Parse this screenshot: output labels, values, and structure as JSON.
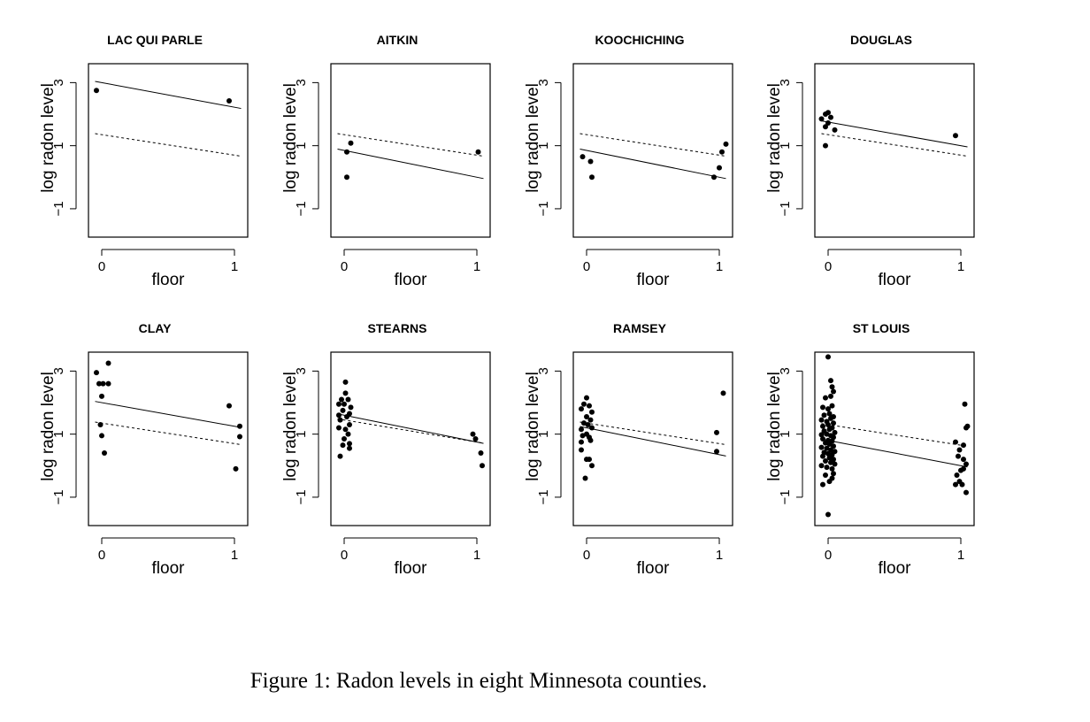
{
  "caption": "Figure 1: Radon levels in eight Minnesota counties.",
  "chart_data": [
    {
      "type": "scatter",
      "title": "LAC QUI PARLE",
      "xlabel": "floor",
      "ylabel": "log radon level",
      "xlim": [
        -0.1,
        1.1
      ],
      "ylim": [
        -1.9,
        3.6
      ],
      "xticks": [
        0,
        1
      ],
      "yticks": [
        -1,
        1,
        3
      ],
      "points": [
        [
          -0.04,
          2.75
        ],
        [
          0.96,
          2.42
        ]
      ],
      "solid_line": {
        "intercept": 3.0,
        "slope": -0.78
      },
      "dashed_line": {
        "intercept": 1.35,
        "slope": -0.65
      }
    },
    {
      "type": "scatter",
      "title": "AITKIN",
      "xlabel": "floor",
      "ylabel": "log radon level",
      "xlim": [
        -0.1,
        1.1
      ],
      "ylim": [
        -1.9,
        3.6
      ],
      "xticks": [
        0,
        1
      ],
      "yticks": [
        -1,
        1,
        3
      ],
      "points": [
        [
          0.02,
          0.8
        ],
        [
          0.05,
          1.08
        ],
        [
          0.02,
          0.0
        ],
        [
          1.01,
          0.8
        ]
      ],
      "solid_line": {
        "intercept": 0.85,
        "slope": -0.85
      },
      "dashed_line": {
        "intercept": 1.35,
        "slope": -0.65
      }
    },
    {
      "type": "scatter",
      "title": "KOOCHICHING",
      "xlabel": "floor",
      "ylabel": "log radon level",
      "xlim": [
        -0.1,
        1.1
      ],
      "ylim": [
        -1.9,
        3.6
      ],
      "xticks": [
        0,
        1
      ],
      "yticks": [
        -1,
        1,
        3
      ],
      "points": [
        [
          -0.03,
          0.65
        ],
        [
          0.03,
          0.5
        ],
        [
          0.04,
          0.0
        ],
        [
          0.96,
          0.0
        ],
        [
          1.0,
          0.3
        ],
        [
          1.02,
          0.8
        ],
        [
          1.05,
          1.05
        ]
      ],
      "solid_line": {
        "intercept": 0.85,
        "slope": -0.85
      },
      "dashed_line": {
        "intercept": 1.35,
        "slope": -0.65
      }
    },
    {
      "type": "scatter",
      "title": "DOUGLAS",
      "xlabel": "floor",
      "ylabel": "log radon level",
      "xlim": [
        -0.1,
        1.1
      ],
      "ylim": [
        -1.9,
        3.6
      ],
      "xticks": [
        0,
        1
      ],
      "yticks": [
        -1,
        1,
        3
      ],
      "points": [
        [
          -0.05,
          1.85
        ],
        [
          -0.02,
          2.0
        ],
        [
          0.0,
          2.05
        ],
        [
          0.02,
          1.9
        ],
        [
          -0.02,
          1.6
        ],
        [
          0.0,
          1.72
        ],
        [
          0.05,
          1.5
        ],
        [
          -0.02,
          1.0
        ],
        [
          0.96,
          1.32
        ]
      ],
      "solid_line": {
        "intercept": 1.75,
        "slope": -0.75
      },
      "dashed_line": {
        "intercept": 1.35,
        "slope": -0.65
      }
    },
    {
      "type": "scatter",
      "title": "CLAY",
      "xlabel": "floor",
      "ylabel": "log radon level",
      "xlim": [
        -0.1,
        1.1
      ],
      "ylim": [
        -1.9,
        3.6
      ],
      "xticks": [
        0,
        1
      ],
      "yticks": [
        -1,
        1,
        3
      ],
      "points": [
        [
          -0.04,
          2.95
        ],
        [
          0.05,
          3.25
        ],
        [
          -0.02,
          2.6
        ],
        [
          0.01,
          2.6
        ],
        [
          0.05,
          2.6
        ],
        [
          0.0,
          2.2
        ],
        [
          -0.01,
          1.3
        ],
        [
          0.0,
          0.95
        ],
        [
          0.02,
          0.4
        ],
        [
          0.96,
          1.9
        ],
        [
          1.04,
          1.25
        ],
        [
          1.04,
          0.92
        ],
        [
          1.01,
          -0.1
        ]
      ],
      "solid_line": {
        "intercept": 2.0,
        "slope": -0.75
      },
      "dashed_line": {
        "intercept": 1.35,
        "slope": -0.65
      }
    },
    {
      "type": "scatter",
      "title": "STEARNS",
      "xlabel": "floor",
      "ylabel": "log radon level",
      "xlim": [
        -0.1,
        1.1
      ],
      "ylim": [
        -1.9,
        3.6
      ],
      "xticks": [
        0,
        1
      ],
      "yticks": [
        -1,
        1,
        3
      ],
      "points": [
        [
          0.01,
          2.65
        ],
        [
          0.01,
          2.3
        ],
        [
          -0.02,
          2.1
        ],
        [
          0.03,
          2.1
        ],
        [
          -0.04,
          1.95
        ],
        [
          0.0,
          1.95
        ],
        [
          0.05,
          1.85
        ],
        [
          -0.01,
          1.75
        ],
        [
          0.04,
          1.65
        ],
        [
          -0.04,
          1.6
        ],
        [
          0.02,
          1.55
        ],
        [
          -0.03,
          1.45
        ],
        [
          0.04,
          1.3
        ],
        [
          -0.04,
          1.2
        ],
        [
          0.01,
          1.15
        ],
        [
          0.03,
          1.0
        ],
        [
          0.0,
          0.85
        ],
        [
          -0.01,
          0.65
        ],
        [
          0.04,
          0.55
        ],
        [
          0.04,
          0.7
        ],
        [
          -0.03,
          0.3
        ],
        [
          0.97,
          1.0
        ],
        [
          0.99,
          0.85
        ],
        [
          1.03,
          0.4
        ],
        [
          1.04,
          0.0
        ]
      ],
      "solid_line": {
        "intercept": 1.6,
        "slope": -0.85
      },
      "dashed_line": {
        "intercept": 1.45,
        "slope": -0.7
      }
    },
    {
      "type": "scatter",
      "title": "RAMSEY",
      "xlabel": "floor",
      "ylabel": "log radon level",
      "xlim": [
        -0.1,
        1.1
      ],
      "ylim": [
        -1.9,
        3.6
      ],
      "xticks": [
        0,
        1
      ],
      "yticks": [
        -1,
        1,
        3
      ],
      "points": [
        [
          0.0,
          2.15
        ],
        [
          -0.02,
          1.95
        ],
        [
          0.02,
          1.9
        ],
        [
          -0.04,
          1.8
        ],
        [
          0.04,
          1.7
        ],
        [
          0.0,
          1.55
        ],
        [
          0.03,
          1.45
        ],
        [
          -0.02,
          1.35
        ],
        [
          0.01,
          1.3
        ],
        [
          -0.04,
          1.15
        ],
        [
          0.04,
          1.2
        ],
        [
          0.0,
          1.0
        ],
        [
          -0.03,
          0.95
        ],
        [
          0.02,
          0.9
        ],
        [
          -0.04,
          0.75
        ],
        [
          0.03,
          0.8
        ],
        [
          -0.04,
          0.5
        ],
        [
          0.0,
          0.2
        ],
        [
          0.02,
          0.2
        ],
        [
          0.04,
          0.0
        ],
        [
          -0.01,
          -0.4
        ],
        [
          0.98,
          1.05
        ],
        [
          0.98,
          0.45
        ],
        [
          1.03,
          2.3
        ]
      ],
      "solid_line": {
        "intercept": 1.2,
        "slope": -0.85
      },
      "dashed_line": {
        "intercept": 1.35,
        "slope": -0.65
      }
    },
    {
      "type": "scatter",
      "title": "ST LOUIS",
      "xlabel": "floor",
      "ylabel": "log radon level",
      "xlim": [
        -0.1,
        1.1
      ],
      "ylim": [
        -1.9,
        3.6
      ],
      "xticks": [
        0,
        1
      ],
      "yticks": [
        -1,
        1,
        3
      ],
      "points": [
        [
          0.0,
          3.45
        ],
        [
          0.02,
          2.7
        ],
        [
          0.03,
          2.5
        ],
        [
          0.04,
          2.35
        ],
        [
          -0.02,
          2.15
        ],
        [
          0.02,
          2.2
        ],
        [
          -0.04,
          1.85
        ],
        [
          0.0,
          1.8
        ],
        [
          0.03,
          1.9
        ],
        [
          -0.03,
          1.6
        ],
        [
          0.01,
          1.65
        ],
        [
          0.04,
          1.55
        ],
        [
          -0.05,
          1.45
        ],
        [
          -0.01,
          1.4
        ],
        [
          0.02,
          1.5
        ],
        [
          0.04,
          1.35
        ],
        [
          -0.04,
          1.25
        ],
        [
          0.0,
          1.3
        ],
        [
          0.03,
          1.2
        ],
        [
          -0.03,
          1.1
        ],
        [
          0.01,
          1.15
        ],
        [
          0.05,
          1.05
        ],
        [
          -0.05,
          0.98
        ],
        [
          -0.01,
          1.0
        ],
        [
          0.02,
          0.95
        ],
        [
          0.04,
          0.9
        ],
        [
          -0.04,
          0.85
        ],
        [
          0.0,
          0.8
        ],
        [
          0.03,
          0.78
        ],
        [
          -0.02,
          0.72
        ],
        [
          0.01,
          0.68
        ],
        [
          0.04,
          0.62
        ],
        [
          -0.05,
          0.58
        ],
        [
          -0.01,
          0.55
        ],
        [
          0.02,
          0.5
        ],
        [
          0.05,
          0.45
        ],
        [
          -0.03,
          0.42
        ],
        [
          0.0,
          0.38
        ],
        [
          0.03,
          0.35
        ],
        [
          -0.04,
          0.3
        ],
        [
          0.01,
          0.25
        ],
        [
          0.04,
          0.2
        ],
        [
          -0.02,
          0.15
        ],
        [
          0.02,
          0.1
        ],
        [
          0.05,
          0.05
        ],
        [
          -0.05,
          0.0
        ],
        [
          -0.01,
          -0.05
        ],
        [
          0.03,
          -0.1
        ],
        [
          0.04,
          -0.25
        ],
        [
          -0.02,
          -0.3
        ],
        [
          0.03,
          -0.4
        ],
        [
          -0.04,
          -0.6
        ],
        [
          0.01,
          -0.5
        ],
        [
          0.0,
          -1.55
        ],
        [
          0.96,
          0.75
        ],
        [
          0.99,
          0.5
        ],
        [
          1.02,
          0.65
        ],
        [
          1.03,
          1.95
        ],
        [
          1.04,
          1.2
        ],
        [
          1.05,
          1.25
        ],
        [
          0.98,
          0.3
        ],
        [
          1.02,
          0.2
        ],
        [
          1.04,
          0.05
        ],
        [
          1.02,
          -0.1
        ],
        [
          1.0,
          -0.15
        ],
        [
          0.97,
          -0.3
        ],
        [
          0.99,
          -0.5
        ],
        [
          0.96,
          -0.6
        ],
        [
          1.01,
          -0.6
        ],
        [
          1.04,
          -0.85
        ]
      ],
      "solid_line": {
        "intercept": 0.8,
        "slope": -0.8
      },
      "dashed_line": {
        "intercept": 1.3,
        "slope": -0.65
      }
    }
  ]
}
